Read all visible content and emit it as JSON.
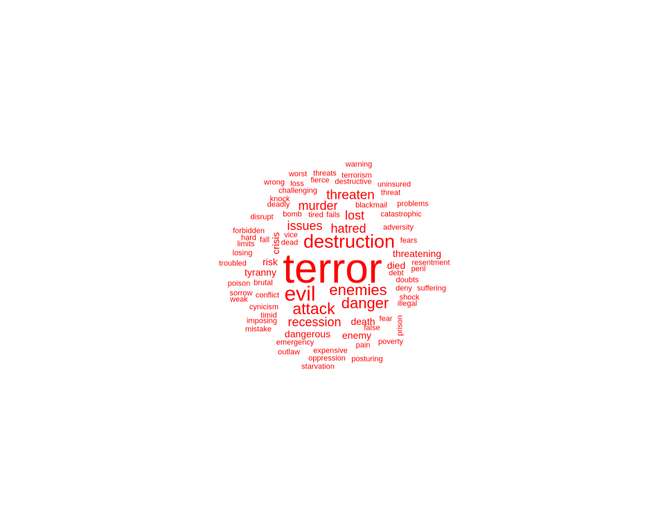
{
  "color": "#ff0000",
  "words": [
    {
      "text": "terror"
    },
    {
      "text": "destruction"
    },
    {
      "text": "evil"
    },
    {
      "text": "attack"
    },
    {
      "text": "danger"
    },
    {
      "text": "enemies"
    },
    {
      "text": "threaten"
    },
    {
      "text": "recession"
    },
    {
      "text": "murder"
    },
    {
      "text": "hatred"
    },
    {
      "text": "issues"
    },
    {
      "text": "lost"
    },
    {
      "text": "threatening"
    },
    {
      "text": "death"
    },
    {
      "text": "dangerous"
    },
    {
      "text": "enemy"
    },
    {
      "text": "tyranny"
    },
    {
      "text": "risk"
    },
    {
      "text": "died"
    },
    {
      "text": "crisis"
    },
    {
      "text": "warning"
    },
    {
      "text": "worst"
    },
    {
      "text": "threats"
    },
    {
      "text": "terrorism"
    },
    {
      "text": "wrong"
    },
    {
      "text": "loss"
    },
    {
      "text": "fierce"
    },
    {
      "text": "destructive"
    },
    {
      "text": "uninsured"
    },
    {
      "text": "challenging"
    },
    {
      "text": "threat"
    },
    {
      "text": "knock"
    },
    {
      "text": "deadly"
    },
    {
      "text": "blackmail"
    },
    {
      "text": "problems"
    },
    {
      "text": "disrupt"
    },
    {
      "text": "bomb"
    },
    {
      "text": "tired"
    },
    {
      "text": "fails"
    },
    {
      "text": "catastrophic"
    },
    {
      "text": "forbidden"
    },
    {
      "text": "adversity"
    },
    {
      "text": "hard"
    },
    {
      "text": "vice"
    },
    {
      "text": "fall"
    },
    {
      "text": "limits"
    },
    {
      "text": "dead"
    },
    {
      "text": "fears"
    },
    {
      "text": "losing"
    },
    {
      "text": "troubled"
    },
    {
      "text": "resentment"
    },
    {
      "text": "peril"
    },
    {
      "text": "debt"
    },
    {
      "text": "poison"
    },
    {
      "text": "brutal"
    },
    {
      "text": "doubts"
    },
    {
      "text": "deny"
    },
    {
      "text": "suffering"
    },
    {
      "text": "sorrow"
    },
    {
      "text": "conflict"
    },
    {
      "text": "weak"
    },
    {
      "text": "shock"
    },
    {
      "text": "illegal"
    },
    {
      "text": "cynicism"
    },
    {
      "text": "timid"
    },
    {
      "text": "fear"
    },
    {
      "text": "imposing"
    },
    {
      "text": "prison"
    },
    {
      "text": "false"
    },
    {
      "text": "mistake"
    },
    {
      "text": "poverty"
    },
    {
      "text": "emergency"
    },
    {
      "text": "pain"
    },
    {
      "text": "expensive"
    },
    {
      "text": "outlaw"
    },
    {
      "text": "oppression"
    },
    {
      "text": "posturing"
    },
    {
      "text": "starvation"
    }
  ]
}
